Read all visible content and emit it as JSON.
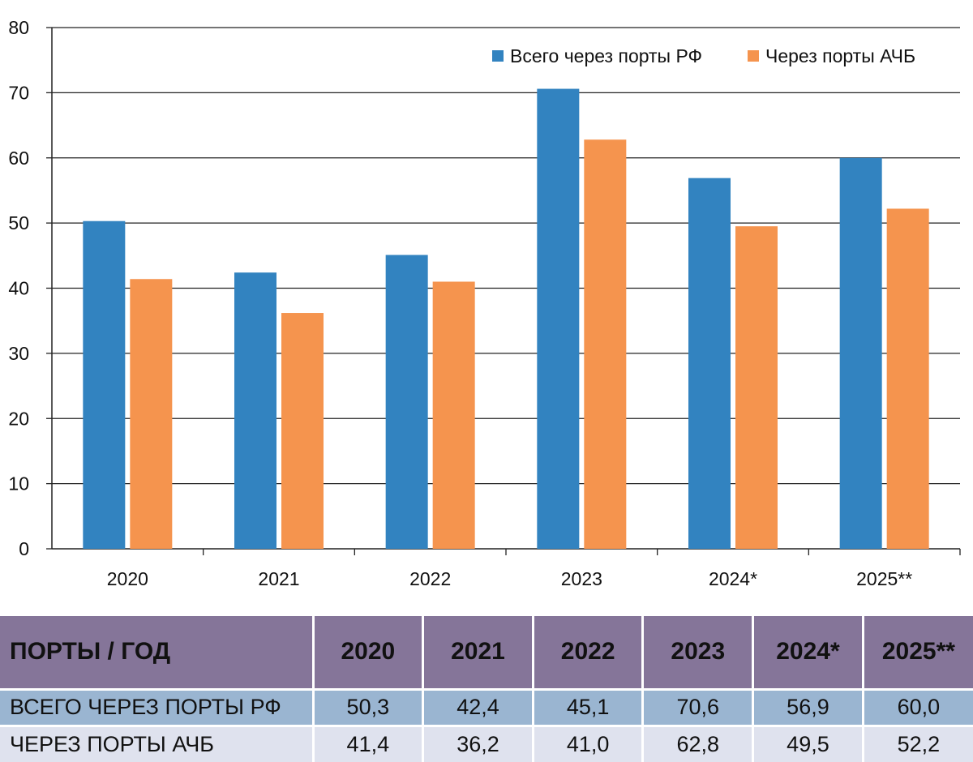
{
  "chart_data": {
    "type": "bar",
    "categories": [
      "2020",
      "2021",
      "2022",
      "2023",
      "2024*",
      "2025**"
    ],
    "series": [
      {
        "name": "Всего через порты РФ",
        "values": [
          50.3,
          42.4,
          45.1,
          70.6,
          56.9,
          60.0
        ],
        "color": "#3283c0"
      },
      {
        "name": "Через порты АЧБ",
        "values": [
          41.4,
          36.2,
          41.0,
          62.8,
          49.5,
          52.2
        ],
        "color": "#f5944e"
      }
    ],
    "ylim": [
      0,
      80
    ],
    "yticks": [
      0,
      10,
      20,
      30,
      40,
      50,
      60,
      70,
      80
    ],
    "grid": true,
    "legend_position": "top-right",
    "title": "",
    "xlabel": "",
    "ylabel": ""
  },
  "table": {
    "header": [
      "ПОРТЫ / ГОД",
      "2020",
      "2021",
      "2022",
      "2023",
      "2024*",
      "2025**"
    ],
    "rows": [
      [
        "ВСЕГО ЧЕРЕЗ ПОРТЫ РФ",
        "50,3",
        "42,4",
        "45,1",
        "70,6",
        "56,9",
        "60,0"
      ],
      [
        "ЧЕРЕЗ ПОРТЫ АЧБ",
        "41,4",
        "36,2",
        "41,0",
        "62,8",
        "49,5",
        "52,2"
      ]
    ],
    "header_color": "#857599",
    "row_colors": [
      "#9ab5d1",
      "#dfe2ee"
    ]
  }
}
